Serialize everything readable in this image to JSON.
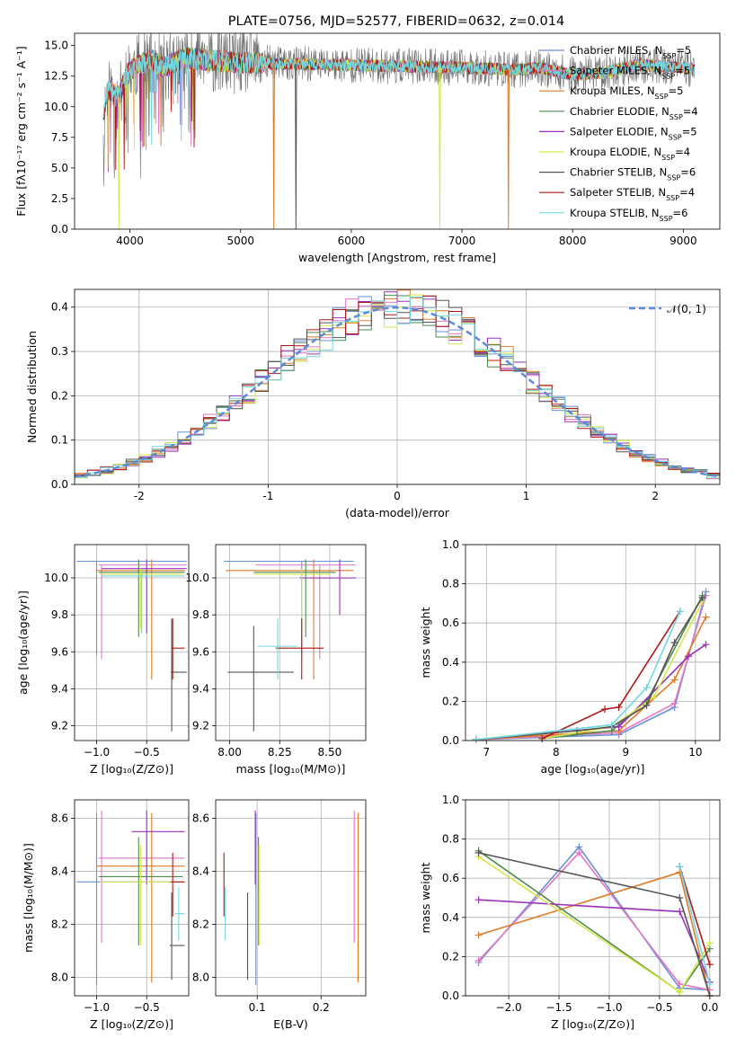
{
  "colors": {
    "Chabrier MILES": "#6a8fd8",
    "Salpeter MILES": "#e377c2",
    "Kroupa MILES": "#e07b28",
    "Chabrier ELODIE": "#4f8a4f",
    "Salpeter ELODIE": "#9b30b8",
    "Kroupa ELODIE": "#d4e84a",
    "Chabrier STELIB": "#555555",
    "Salpeter STELIB": "#b01818",
    "Kroupa STELIB": "#70d8e0"
  },
  "legend_labels": {
    "Chabrier MILES": "Chabrier MILES, N",
    "Salpeter MILES": "Salpeter MILES, N",
    "Kroupa MILES": "Kroupa MILES, N",
    "Chabrier ELODIE": "Chabrier ELODIE, N",
    "Salpeter ELODIE": "Salpeter ELODIE, N",
    "Kroupa ELODIE": "Kroupa ELODIE, N",
    "Chabrier STELIB": "Chabrier STELIB, N",
    "Salpeter STELIB": "Salpeter STELIB, N",
    "Kroupa STELIB": "Kroupa STELIB, N"
  },
  "legend_nssp": {
    "Chabrier MILES": "=5",
    "Salpeter MILES": "=5",
    "Kroupa MILES": "=5",
    "Chabrier ELODIE": "=4",
    "Salpeter ELODIE": "=5",
    "Kroupa ELODIE": "=4",
    "Chabrier STELIB": "=6",
    "Salpeter STELIB": "=4",
    "Kroupa STELIB": "=6"
  },
  "chart_data": [
    {
      "type": "line",
      "title": "PLATE=0756, MJD=52577, FIBERID=0632, z=0.014",
      "xlabel": "wavelength [Angstrom, rest frame]",
      "ylabel": "Flux [fλ10⁻¹⁷ erg cm⁻² s⁻¹ A⁻¹]",
      "xlim": [
        3500,
        9330
      ],
      "ylim": [
        0,
        16
      ],
      "xticks": [
        4000,
        5000,
        6000,
        7000,
        8000,
        9000
      ],
      "yticks": [
        0.0,
        2.5,
        5.0,
        7.5,
        10.0,
        12.5,
        15.0
      ],
      "ytick_labels": [
        "0.0",
        "2.5",
        "5.0",
        "7.5",
        "10.0",
        "12.5",
        "15.0"
      ],
      "legend_location": "upper right",
      "series_names": [
        "Chabrier MILES",
        "Salpeter MILES",
        "Kroupa MILES",
        "Chabrier ELODIE",
        "Salpeter ELODIE",
        "Kroupa ELODIE",
        "Chabrier STELIB",
        "Salpeter STELIB",
        "Kroupa STELIB"
      ],
      "continuum": {
        "x": [
          3750,
          3800,
          3850,
          3900,
          3950,
          4000,
          4100,
          4200,
          4300,
          4500,
          4700,
          5000,
          5500,
          6000,
          6500,
          7000,
          7300,
          7500,
          7700,
          8000,
          8300,
          8600,
          9000,
          9100
        ],
        "y": [
          8.5,
          11.5,
          11.0,
          10.8,
          12.0,
          13.0,
          13.5,
          13.8,
          13.2,
          14.0,
          13.8,
          13.6,
          13.5,
          13.4,
          13.3,
          13.2,
          13.1,
          13.0,
          13.2,
          12.6,
          12.8,
          13.4,
          13.2,
          13.0
        ]
      },
      "dips": [
        {
          "x": 3900,
          "series": "Kroupa ELODIE"
        },
        {
          "x": 5300,
          "series": "Kroupa MILES"
        },
        {
          "x": 5500,
          "series": "Chabrier STELIB"
        },
        {
          "x": 6800,
          "series": "Kroupa ELODIE"
        },
        {
          "x": 7420,
          "series": "Kroupa MILES"
        }
      ]
    },
    {
      "type": "histogram",
      "xlabel": "(data-model)/error",
      "ylabel": "Normed distribution",
      "xlim": [
        -2.5,
        2.5
      ],
      "ylim": [
        0,
        0.44
      ],
      "xticks": [
        -2,
        -1,
        0,
        1,
        2
      ],
      "yticks": [
        0.0,
        0.1,
        0.2,
        0.3,
        0.4
      ],
      "ytick_labels": [
        "0.0",
        "0.1",
        "0.2",
        "0.3",
        "0.4"
      ],
      "bin_width": 0.1,
      "reference_curve": {
        "name": "N(0,1)",
        "legend_label": "𝒩(0, 1)",
        "style": "dashed",
        "color": "#5b8bd6"
      }
    },
    {
      "type": "errorbar",
      "xlabel": "Z [log₁₀(Z/Z⊙)]",
      "ylabel": "age  [log₁₀(age/yr)]",
      "xlim": [
        -1.22,
        -0.08
      ],
      "ylim": [
        9.12,
        10.18
      ],
      "xticks": [
        -1.0,
        -0.5
      ],
      "xtick_labels": [
        "−1.0",
        "−0.5"
      ],
      "yticks": [
        9.2,
        9.4,
        9.6,
        9.8,
        10.0
      ],
      "ytick_labels": [
        "9.2",
        "9.4",
        "9.6",
        "9.8",
        "10.0"
      ],
      "points": [
        {
          "series": "Chabrier MILES",
          "x": -1.0,
          "y": 10.09,
          "xlo": -1.2,
          "xhi": -0.1,
          "ylo": 9.58,
          "yhi": 10.09
        },
        {
          "series": "Salpeter MILES",
          "x": -0.95,
          "y": 10.07,
          "xlo": -0.98,
          "xhi": -0.1,
          "ylo": 9.56,
          "yhi": 10.07
        },
        {
          "series": "Kroupa MILES",
          "x": -0.45,
          "y": 10.04,
          "xlo": -1.0,
          "xhi": -0.12,
          "ylo": 9.45,
          "yhi": 10.1
        },
        {
          "series": "Chabrier ELODIE",
          "x": -0.58,
          "y": 10.03,
          "xlo": -0.98,
          "xhi": -0.12,
          "ylo": 9.68,
          "yhi": 10.1
        },
        {
          "series": "Salpeter ELODIE",
          "x": -0.5,
          "y": 10.05,
          "xlo": -0.95,
          "xhi": -0.1,
          "ylo": 9.7,
          "yhi": 10.1
        },
        {
          "series": "Kroupa ELODIE",
          "x": -0.56,
          "y": 10.02,
          "xlo": -0.97,
          "xhi": -0.14,
          "ylo": 9.72,
          "yhi": 10.05
        },
        {
          "series": "Chabrier STELIB",
          "x": -0.25,
          "y": 9.49,
          "xlo": -0.26,
          "xhi": -0.1,
          "ylo": 9.17,
          "yhi": 9.78
        },
        {
          "series": "Salpeter STELIB",
          "x": -0.24,
          "y": 9.62,
          "xlo": -0.25,
          "xhi": -0.12,
          "ylo": 9.45,
          "yhi": 9.78
        },
        {
          "series": "Kroupa STELIB",
          "x": -0.55,
          "y": 10.01,
          "xlo": -0.95,
          "xhi": -0.12,
          "ylo": 9.7,
          "yhi": 10.05
        }
      ]
    },
    {
      "type": "errorbar",
      "xlabel": "mass [log₁₀(M/M⊙)]",
      "ylabel": "",
      "xlim": [
        7.93,
        8.68
      ],
      "ylim": [
        9.12,
        10.18
      ],
      "xticks": [
        8.0,
        8.25,
        8.5
      ],
      "xtick_labels": [
        "8.00",
        "8.25",
        "8.50"
      ],
      "yticks": [
        9.2,
        9.4,
        9.6,
        9.8,
        10.0
      ],
      "ytick_labels": [
        "9.2",
        "9.4",
        "9.6",
        "9.8",
        "10.0"
      ],
      "points": [
        {
          "series": "Chabrier MILES",
          "x": 8.36,
          "y": 10.09,
          "xlo": 7.97,
          "xhi": 8.62,
          "ylo": 9.58,
          "yhi": 10.09
        },
        {
          "series": "Salpeter MILES",
          "x": 8.45,
          "y": 10.07,
          "xlo": 8.13,
          "xhi": 8.63,
          "ylo": 9.56,
          "yhi": 10.07
        },
        {
          "series": "Kroupa MILES",
          "x": 8.42,
          "y": 10.04,
          "xlo": 7.98,
          "xhi": 8.62,
          "ylo": 9.45,
          "yhi": 10.1
        },
        {
          "series": "Chabrier ELODIE",
          "x": 8.38,
          "y": 10.03,
          "xlo": 8.12,
          "xhi": 8.53,
          "ylo": 9.68,
          "yhi": 10.1
        },
        {
          "series": "Salpeter ELODIE",
          "x": 8.55,
          "y": 10.0,
          "xlo": 8.35,
          "xhi": 8.63,
          "ylo": 9.8,
          "yhi": 10.1
        },
        {
          "series": "Kroupa ELODIE",
          "x": 8.36,
          "y": 10.02,
          "xlo": 8.12,
          "xhi": 8.5,
          "ylo": 9.72,
          "yhi": 10.05
        },
        {
          "series": "Chabrier STELIB",
          "x": 8.12,
          "y": 9.49,
          "xlo": 7.99,
          "xhi": 8.32,
          "ylo": 9.17,
          "yhi": 9.74
        },
        {
          "series": "Salpeter STELIB",
          "x": 8.36,
          "y": 9.62,
          "xlo": 8.23,
          "xhi": 8.47,
          "ylo": 9.45,
          "yhi": 9.78
        },
        {
          "series": "Kroupa STELIB",
          "x": 8.24,
          "y": 9.63,
          "xlo": 8.14,
          "xhi": 8.34,
          "ylo": 9.45,
          "yhi": 9.78
        }
      ]
    },
    {
      "type": "line",
      "xlabel": "age  [log₁₀(age/yr)]",
      "ylabel": "mass weight",
      "xlim": [
        6.7,
        10.35
      ],
      "ylim": [
        0,
        1
      ],
      "xticks": [
        7,
        8,
        9,
        10
      ],
      "xtick_labels": [
        "7",
        "8",
        "9",
        "10"
      ],
      "yticks": [
        0.0,
        0.2,
        0.4,
        0.6,
        0.8,
        1.0
      ],
      "ytick_labels": [
        "0.0",
        "0.2",
        "0.4",
        "0.6",
        "0.8",
        "1.0"
      ],
      "series": [
        {
          "series": "Chabrier MILES",
          "x": [
            6.85,
            8.9,
            9.7,
            10.15
          ],
          "y": [
            0.005,
            0.03,
            0.17,
            0.76
          ]
        },
        {
          "series": "Salpeter MILES",
          "x": [
            6.85,
            8.9,
            9.7,
            10.15
          ],
          "y": [
            0.005,
            0.04,
            0.19,
            0.74
          ]
        },
        {
          "series": "Kroupa MILES",
          "x": [
            6.85,
            8.9,
            9.7,
            10.15
          ],
          "y": [
            0.005,
            0.05,
            0.31,
            0.63
          ]
        },
        {
          "series": "Chabrier ELODIE",
          "x": [
            7.8,
            8.8,
            9.3,
            10.1
          ],
          "y": [
            0.01,
            0.05,
            0.2,
            0.74
          ]
        },
        {
          "series": "Salpeter ELODIE",
          "x": [
            6.85,
            8.9,
            9.9,
            10.15
          ],
          "y": [
            0.005,
            0.07,
            0.43,
            0.49
          ]
        },
        {
          "series": "Kroupa ELODIE",
          "x": [
            7.8,
            8.8,
            9.4,
            10.1
          ],
          "y": [
            0.01,
            0.07,
            0.22,
            0.71
          ]
        },
        {
          "series": "Chabrier STELIB",
          "x": [
            6.85,
            8.3,
            8.8,
            9.3,
            9.7,
            10.1
          ],
          "y": [
            0.005,
            0.05,
            0.07,
            0.18,
            0.5,
            0.73
          ]
        },
        {
          "series": "Salpeter STELIB",
          "x": [
            7.8,
            8.7,
            8.9,
            9.78
          ],
          "y": [
            0.01,
            0.16,
            0.17,
            0.66
          ]
        },
        {
          "series": "Kroupa STELIB",
          "x": [
            6.85,
            8.8,
            9.3,
            9.78
          ],
          "y": [
            0.005,
            0.08,
            0.27,
            0.66
          ]
        }
      ]
    },
    {
      "type": "errorbar",
      "xlabel": "Z [log₁₀(Z/Z⊙)]",
      "ylabel": "mass [log₁₀(M/M⊙)]",
      "xlim": [
        -1.22,
        -0.08
      ],
      "ylim": [
        7.93,
        8.67
      ],
      "xticks": [
        -1.0,
        -0.5
      ],
      "xtick_labels": [
        "−1.0",
        "−0.5"
      ],
      "yticks": [
        8.0,
        8.2,
        8.4,
        8.6
      ],
      "ytick_labels": [
        "8.0",
        "8.2",
        "8.4",
        "8.6"
      ],
      "points": [
        {
          "series": "Chabrier MILES",
          "x": -1.0,
          "y": 8.36,
          "xlo": -1.2,
          "xhi": -0.12,
          "ylo": 7.97,
          "yhi": 8.62
        },
        {
          "series": "Salpeter MILES",
          "x": -0.95,
          "y": 8.45,
          "xlo": -0.98,
          "xhi": -0.12,
          "ylo": 8.13,
          "yhi": 8.63
        },
        {
          "series": "Kroupa MILES",
          "x": -0.45,
          "y": 8.42,
          "xlo": -1.0,
          "xhi": -0.12,
          "ylo": 7.98,
          "yhi": 8.62
        },
        {
          "series": "Chabrier ELODIE",
          "x": -0.58,
          "y": 8.38,
          "xlo": -0.98,
          "xhi": -0.14,
          "ylo": 8.12,
          "yhi": 8.53
        },
        {
          "series": "Salpeter ELODIE",
          "x": -0.5,
          "y": 8.55,
          "xlo": -0.65,
          "xhi": -0.12,
          "ylo": 8.35,
          "yhi": 8.63
        },
        {
          "series": "Kroupa ELODIE",
          "x": -0.56,
          "y": 8.36,
          "xlo": -0.97,
          "xhi": -0.14,
          "ylo": 8.12,
          "yhi": 8.5
        },
        {
          "series": "Chabrier STELIB",
          "x": -0.25,
          "y": 8.12,
          "xlo": -0.27,
          "xhi": -0.12,
          "ylo": 7.99,
          "yhi": 8.32
        },
        {
          "series": "Salpeter STELIB",
          "x": -0.24,
          "y": 8.36,
          "xlo": -0.26,
          "xhi": -0.12,
          "ylo": 8.23,
          "yhi": 8.47
        },
        {
          "series": "Kroupa STELIB",
          "x": -0.18,
          "y": 8.24,
          "xlo": -0.22,
          "xhi": -0.12,
          "ylo": 8.14,
          "yhi": 8.34
        }
      ]
    },
    {
      "type": "errorbar",
      "xlabel": "E(B-V)",
      "ylabel": "",
      "xlim": [
        0.035,
        0.27
      ],
      "ylim": [
        7.93,
        8.67
      ],
      "xticks": [
        0.1,
        0.2
      ],
      "xtick_labels": [
        "0.1",
        "0.2"
      ],
      "yticks": [
        8.0,
        8.2,
        8.4,
        8.6
      ],
      "ytick_labels": [
        "8.0",
        "8.2",
        "8.4",
        "8.6"
      ],
      "points": [
        {
          "series": "Chabrier MILES",
          "x": 0.098,
          "y": 8.36,
          "xlo": 0.098,
          "xhi": 0.098,
          "ylo": 7.97,
          "yhi": 8.62
        },
        {
          "series": "Salpeter MILES",
          "x": 0.252,
          "y": 8.45,
          "xlo": 0.252,
          "xhi": 0.252,
          "ylo": 8.13,
          "yhi": 8.63
        },
        {
          "series": "Kroupa MILES",
          "x": 0.258,
          "y": 8.42,
          "xlo": 0.258,
          "xhi": 0.258,
          "ylo": 7.98,
          "yhi": 8.62
        },
        {
          "series": "Chabrier ELODIE",
          "x": 0.102,
          "y": 8.38,
          "xlo": 0.102,
          "xhi": 0.102,
          "ylo": 8.12,
          "yhi": 8.53
        },
        {
          "series": "Salpeter ELODIE",
          "x": 0.097,
          "y": 8.55,
          "xlo": 0.097,
          "xhi": 0.097,
          "ylo": 8.35,
          "yhi": 8.63
        },
        {
          "series": "Kroupa ELODIE",
          "x": 0.103,
          "y": 8.36,
          "xlo": 0.103,
          "xhi": 0.103,
          "ylo": 8.12,
          "yhi": 8.5
        },
        {
          "series": "Chabrier STELIB",
          "x": 0.085,
          "y": 8.12,
          "xlo": 0.085,
          "xhi": 0.085,
          "ylo": 7.99,
          "yhi": 8.32
        },
        {
          "series": "Salpeter STELIB",
          "x": 0.048,
          "y": 8.36,
          "xlo": 0.048,
          "xhi": 0.048,
          "ylo": 8.23,
          "yhi": 8.47
        },
        {
          "series": "Kroupa STELIB",
          "x": 0.05,
          "y": 8.24,
          "xlo": 0.05,
          "xhi": 0.05,
          "ylo": 8.14,
          "yhi": 8.34
        }
      ]
    },
    {
      "type": "line",
      "xlabel": "Z [log₁₀(Z/Z⊙)]",
      "ylabel": "mass weight",
      "xlim": [
        -2.43,
        0.1
      ],
      "ylim": [
        0,
        1
      ],
      "xticks": [
        -2.0,
        -1.5,
        -1.0,
        -0.5,
        0.0
      ],
      "xtick_labels": [
        "−2.0",
        "−1.5",
        "−1.0",
        "−0.5",
        "0.0"
      ],
      "yticks": [
        0.0,
        0.2,
        0.4,
        0.6,
        0.8,
        1.0
      ],
      "ytick_labels": [
        "0.0",
        "0.2",
        "0.4",
        "0.6",
        "0.8",
        "1.0"
      ],
      "series": [
        {
          "series": "Chabrier MILES",
          "x": [
            -2.3,
            -1.3,
            -0.3,
            0.0
          ],
          "y": [
            0.17,
            0.76,
            0.04,
            0.03
          ]
        },
        {
          "series": "Salpeter MILES",
          "x": [
            -2.3,
            -1.3,
            -0.3,
            0.0
          ],
          "y": [
            0.18,
            0.73,
            0.06,
            0.03
          ]
        },
        {
          "series": "Kroupa MILES",
          "x": [
            -2.3,
            -0.3,
            0.0
          ],
          "y": [
            0.31,
            0.63,
            0.0
          ]
        },
        {
          "series": "Chabrier ELODIE",
          "x": [
            -2.3,
            -0.3,
            0.0
          ],
          "y": [
            0.74,
            0.02,
            0.24
          ]
        },
        {
          "series": "Salpeter ELODIE",
          "x": [
            -2.3,
            -0.3,
            0.0
          ],
          "y": [
            0.49,
            0.43,
            0.07
          ]
        },
        {
          "series": "Kroupa ELODIE",
          "x": [
            -2.3,
            -0.3,
            0.0
          ],
          "y": [
            0.71,
            0.02,
            0.27
          ]
        },
        {
          "series": "Chabrier STELIB",
          "x": [
            -2.3,
            -0.3,
            0.0
          ],
          "y": [
            0.73,
            0.5,
            0.0
          ]
        },
        {
          "series": "Salpeter STELIB",
          "x": [
            -0.3,
            0.0
          ],
          "y": [
            0.66,
            0.16
          ]
        },
        {
          "series": "Kroupa STELIB",
          "x": [
            -0.3,
            0.0
          ],
          "y": [
            0.66,
            0.06
          ]
        }
      ]
    }
  ]
}
